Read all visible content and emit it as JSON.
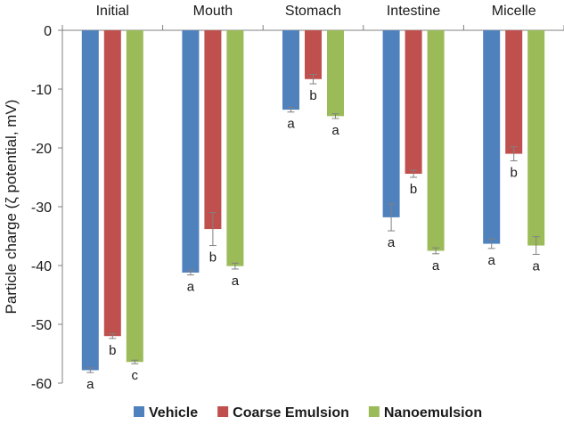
{
  "colors": {
    "vehicle": "#4f81bd",
    "coarse": "#c0504d",
    "nano": "#9bbb59",
    "axis": "#808080",
    "error": "#808080"
  },
  "chart_data": {
    "type": "bar",
    "title": "",
    "xlabel": "",
    "ylabel": "Particle charge (ζ potential, mV)",
    "ylim": [
      -60,
      0
    ],
    "yticks": [
      0,
      -10,
      -20,
      -30,
      -40,
      -50,
      -60
    ],
    "categories": [
      "Initial",
      "Mouth",
      "Stomach",
      "Intestine",
      "Micelle"
    ],
    "category_axis_position": "top",
    "legend_position": "bottom",
    "series": [
      {
        "name": "Vehicle",
        "color_key": "vehicle",
        "values": [
          -57.8,
          -41.2,
          -13.5,
          -31.8,
          -36.3
        ],
        "errors": [
          0.4,
          0.4,
          0.4,
          2.3,
          0.8
        ],
        "letters": [
          "a",
          "a",
          "a",
          "a",
          "a"
        ]
      },
      {
        "name": "Coarse Emulsion",
        "color_key": "coarse",
        "values": [
          -52.0,
          -33.8,
          -8.3,
          -24.4,
          -21.0
        ],
        "errors": [
          0.4,
          2.8,
          0.8,
          0.6,
          1.2
        ],
        "letters": [
          "b",
          "b",
          "b",
          "b",
          "b"
        ]
      },
      {
        "name": "Nanoemulsion",
        "color_key": "nano",
        "values": [
          -56.4,
          -40.1,
          -14.6,
          -37.5,
          -36.6
        ],
        "errors": [
          0.3,
          0.5,
          0.4,
          0.5,
          1.5
        ],
        "letters": [
          "c",
          "a",
          "a",
          "a",
          "a"
        ]
      }
    ]
  }
}
